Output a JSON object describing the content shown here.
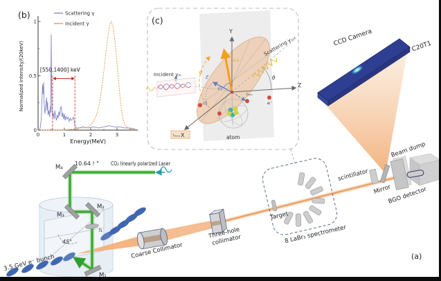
{
  "figure": {
    "panel_a_label": "(a)",
    "panel_b_label": "(b)",
    "panel_c_label": "(c)"
  },
  "chart_data": {
    "type": "line",
    "title": "",
    "xlabel": "Energy(MeV)",
    "ylabel": "Normalized Intensity/(20keV)",
    "xlim": [
      0,
      3.8
    ],
    "ylim": [
      0,
      1.05
    ],
    "x_ticks": [
      0,
      1,
      2,
      3
    ],
    "y_ticks": [
      0,
      0.5,
      1
    ],
    "grid": false,
    "legend_position": "top-left",
    "series": [
      {
        "name": "Scattering γ",
        "color": "#8084c8",
        "dash": "",
        "x": [
          0.05,
          0.08,
          0.12,
          0.15,
          0.17,
          0.19,
          0.21,
          0.23,
          0.26,
          0.29,
          0.32,
          0.34,
          0.36,
          0.38,
          0.41,
          0.44,
          0.46,
          0.48,
          0.5,
          0.51,
          0.53,
          0.55,
          0.58,
          0.61,
          0.64,
          0.67,
          0.7,
          0.73,
          0.76,
          0.79,
          0.82,
          0.85,
          0.88,
          0.91,
          0.94,
          0.97,
          1.0,
          1.03,
          1.06,
          1.1,
          1.14,
          1.18,
          1.22,
          1.26,
          1.3,
          1.34,
          1.38,
          1.41,
          1.45,
          1.55,
          1.7,
          1.9,
          2.1,
          2.3,
          2.5,
          2.7,
          2.9,
          3.1,
          3.3,
          3.5,
          3.7
        ],
        "y": [
          0,
          0.02,
          0.1,
          0.3,
          0.42,
          0.33,
          0.44,
          0.25,
          0.15,
          0.22,
          0.3,
          0.18,
          0.26,
          0.14,
          0.18,
          0.12,
          0.22,
          0.16,
          0.88,
          0.55,
          0.18,
          0.12,
          0.16,
          0.1,
          0.18,
          0.12,
          0.09,
          0.14,
          0.11,
          0.17,
          0.13,
          0.2,
          0.22,
          0.12,
          0.16,
          0.1,
          0.15,
          0.09,
          0.13,
          0.1,
          0.12,
          0.08,
          0.11,
          0.09,
          0.1,
          0.12,
          0.08,
          0.03,
          0.02,
          0.02,
          0.03,
          0.02,
          0.03,
          0.02,
          0.03,
          0.04,
          0.03,
          0.03,
          0.02,
          0.02,
          0.01
        ]
      },
      {
        "name": "Incident γ",
        "color": "#e8944e",
        "dash": "2.2 1.4",
        "x": [
          0.1,
          0.5,
          1.0,
          1.4,
          1.6,
          1.8,
          1.95,
          2.05,
          2.15,
          2.25,
          2.35,
          2.45,
          2.55,
          2.65,
          2.72,
          2.78,
          2.85,
          2.92,
          3.0,
          3.08,
          3.15,
          3.22,
          3.3,
          3.4,
          3.55,
          3.7
        ],
        "y": [
          0,
          0,
          0,
          0.01,
          0.02,
          0.02,
          0.04,
          0.06,
          0.1,
          0.16,
          0.27,
          0.44,
          0.65,
          0.86,
          0.97,
          1.0,
          0.95,
          0.82,
          0.62,
          0.4,
          0.22,
          0.11,
          0.05,
          0.02,
          0.01,
          0.01
        ]
      }
    ],
    "annotation": {
      "label": "[550,1400] keV",
      "x1": 0.55,
      "x2": 1.4,
      "y": 0.5,
      "color": "#cc2a2a"
    }
  },
  "panel_c": {
    "incident_label": "Incident γᵢₙ",
    "scattering_label": "Scattering γₒᵤₜ",
    "axis_x": "X",
    "axis_y": "Y",
    "axis_z": "Z",
    "phi": "φ",
    "theta": "θ",
    "eps_vec": "ε⃗",
    "angle_45": "45°",
    "eps_perp": "ε⊥",
    "eps_par": "ε∥",
    "i_min": "Iₘᵢₙ",
    "i_max": "Iₘₐₓ",
    "atom_label": "atom",
    "electron_label": "e⁻"
  },
  "apparatus": {
    "laser_wavelength": "10.64 ! \"",
    "laser_label": "CO₂ linearly polarized Laser",
    "mirror_m1": "M₁",
    "mirror_m2": "M₂",
    "mirror_m3": "M₃",
    "mirror_m4": "M₄",
    "lens_label": "l₁",
    "angle_45": "45°",
    "ebunch_label": "3.5 GeV e⁻ bunch",
    "coarse_collimator": "Coarse Collimator",
    "three_hole_line1": "Three-hole",
    "three_hole_line2": "collimator",
    "target_label": "Target",
    "labr3_label": "8 LaBr₃ spectrometer",
    "scintillator_label": "scintillator",
    "mirror_label": "Mirror",
    "bgo_label": "BGO detector",
    "beam_dump_label": "Beam dump",
    "ccd_label": "CCD Camera",
    "c20t1_label": "C20T1"
  },
  "colors": {
    "laser_green": "#3daa35",
    "gamma_beam_orange": "#eda166",
    "ccd_navy": "#2e3e92",
    "ebunch_blue": "#3f66b0",
    "annotation_red": "#cc2a2a",
    "scattering_purple": "#8084c8",
    "incident_orange": "#e8944e"
  }
}
